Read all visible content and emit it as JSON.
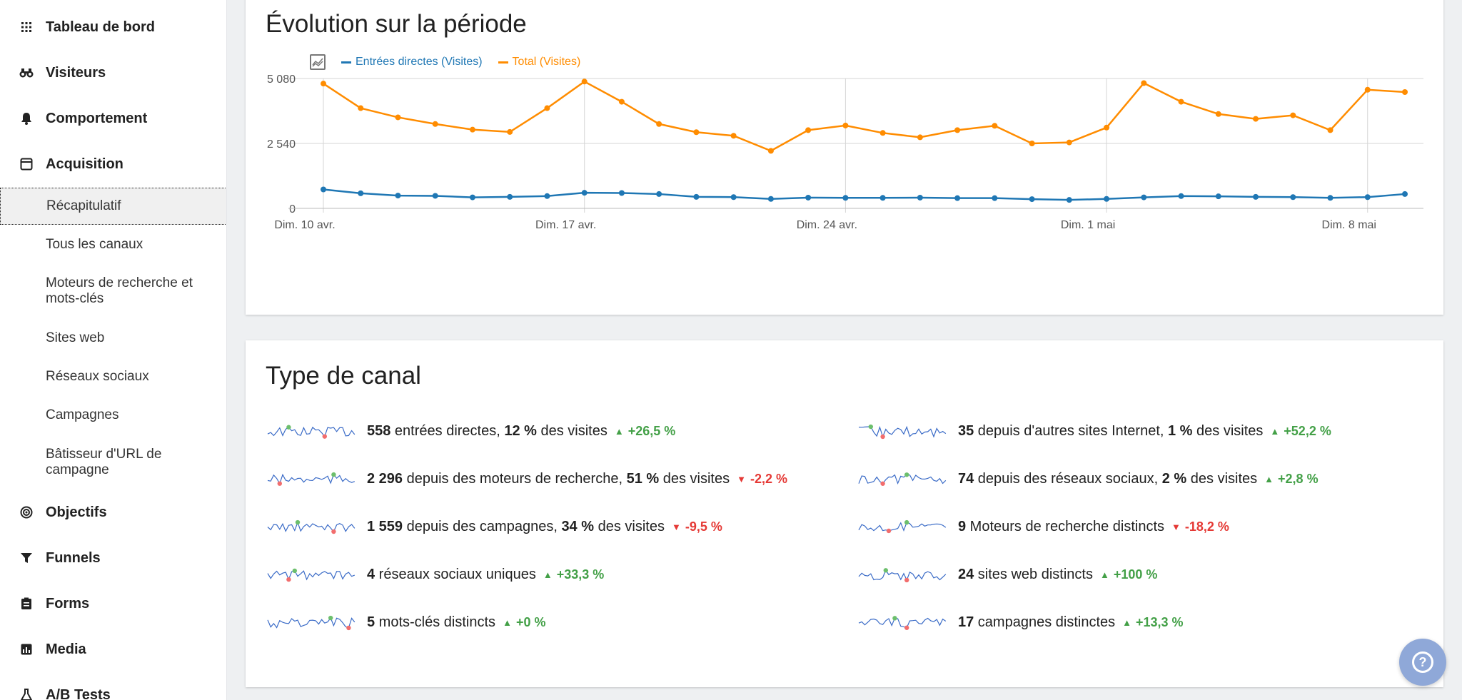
{
  "sidebar": {
    "items": [
      {
        "label": "Tableau de bord",
        "icon": "dashboard-icon"
      },
      {
        "label": "Visiteurs",
        "icon": "binoculars-icon"
      },
      {
        "label": "Comportement",
        "icon": "bell-icon"
      },
      {
        "label": "Acquisition",
        "icon": "window-icon"
      }
    ],
    "acquisition_sub": [
      "Récapitulatif",
      "Tous les canaux",
      "Moteurs de recherche et mots-clés",
      "Sites web",
      "Réseaux sociaux",
      "Campagnes",
      "Bâtisseur d'URL de campagne"
    ],
    "items_after": [
      {
        "label": "Objectifs",
        "icon": "target-icon"
      },
      {
        "label": "Funnels",
        "icon": "funnel-icon"
      },
      {
        "label": "Forms",
        "icon": "clipboard-icon"
      },
      {
        "label": "Media",
        "icon": "media-chart-icon"
      },
      {
        "label": "A/B Tests",
        "icon": "flask-icon"
      }
    ]
  },
  "evolution": {
    "title": "Évolution sur la période"
  },
  "chart_data": {
    "type": "line",
    "title": "",
    "x": [
      "Dim. 10 avr.",
      "Lun. 11 avr.",
      "Mar. 12 avr.",
      "Mer. 13 avr.",
      "Jeu. 14 avr.",
      "Ven. 15 avr.",
      "Sam. 16 avr.",
      "Dim. 17 avr.",
      "Lun. 18 avr.",
      "Mar. 19 avr.",
      "Mer. 20 avr.",
      "Jeu. 21 avr.",
      "Ven. 22 avr.",
      "Sam. 23 avr.",
      "Dim. 24 avr.",
      "Lun. 25 avr.",
      "Mar. 26 avr.",
      "Mer. 27 avr.",
      "Jeu. 28 avr.",
      "Ven. 29 avr.",
      "Sam. 30 avr.",
      "Dim. 1 mai",
      "Lun. 2 mai",
      "Mar. 3 mai",
      "Mer. 4 mai",
      "Jeu. 5 mai",
      "Ven. 6 mai",
      "Sam. 7 mai",
      "Dim. 8 mai",
      "Lun. 9 mai"
    ],
    "tick_labels": [
      "Dim. 10 avr.",
      "Dim. 17 avr.",
      "Dim. 24 avr.",
      "Dim. 1 mai",
      "Dim. 8 mai"
    ],
    "y_ticks": [
      "5 080",
      "2 540",
      "0"
    ],
    "ylim": [
      0,
      5080
    ],
    "series": [
      {
        "name": "Entrées directes (Visites)",
        "color": "#1f77b4",
        "values": [
          740,
          590,
          500,
          490,
          430,
          450,
          480,
          610,
          600,
          560,
          450,
          440,
          370,
          420,
          410,
          410,
          420,
          400,
          400,
          360,
          330,
          370,
          430,
          480,
          470,
          450,
          440,
          410,
          440,
          560
        ]
      },
      {
        "name": "Total (Visites)",
        "color": "#ff8c00",
        "values": [
          4880,
          3920,
          3560,
          3300,
          3080,
          2990,
          3920,
          4960,
          4170,
          3300,
          2980,
          2840,
          2250,
          3060,
          3240,
          2950,
          2780,
          3060,
          3230,
          2540,
          2580,
          3160,
          4900,
          4170,
          3690,
          3500,
          3640,
          3060,
          4640,
          4550
        ]
      }
    ],
    "grid": true,
    "legend_position": "top-left"
  },
  "channels": {
    "title": "Type de canal",
    "left": [
      {
        "num": "558",
        "text1": " entrées directes, ",
        "pct": "12 %",
        "text2": " des visites",
        "trend": "+26,5 %",
        "dir": "up"
      },
      {
        "num": "2 296",
        "text1": " depuis des moteurs de recherche, ",
        "pct": "51 %",
        "text2": " des visites",
        "trend": "-2,2 %",
        "dir": "down"
      },
      {
        "num": "1 559",
        "text1": " depuis des campagnes, ",
        "pct": "34 %",
        "text2": " des visites",
        "trend": "-9,5 %",
        "dir": "down"
      },
      {
        "num": "4",
        "text1": " réseaux sociaux uniques",
        "pct": "",
        "text2": "",
        "trend": "+33,3 %",
        "dir": "up"
      },
      {
        "num": "5",
        "text1": " mots-clés distincts",
        "pct": "",
        "text2": "",
        "trend": "+0 %",
        "dir": "up"
      }
    ],
    "right": [
      {
        "num": "35",
        "text1": " depuis d'autres sites Internet, ",
        "pct": "1 %",
        "text2": " des visites",
        "trend": "+52,2 %",
        "dir": "up"
      },
      {
        "num": "74",
        "text1": " depuis des réseaux sociaux, ",
        "pct": "2 %",
        "text2": " des visites",
        "trend": "+2,8 %",
        "dir": "up"
      },
      {
        "num": "9",
        "text1": " Moteurs de recherche distincts",
        "pct": "",
        "text2": "",
        "trend": "-18,2 %",
        "dir": "down"
      },
      {
        "num": "24",
        "text1": " sites web distincts",
        "pct": "",
        "text2": "",
        "trend": "+100 %",
        "dir": "up"
      },
      {
        "num": "17",
        "text1": " campagnes distinctes",
        "pct": "",
        "text2": "",
        "trend": "+13,3 %",
        "dir": "up"
      }
    ]
  },
  "help": {
    "label": "?"
  }
}
